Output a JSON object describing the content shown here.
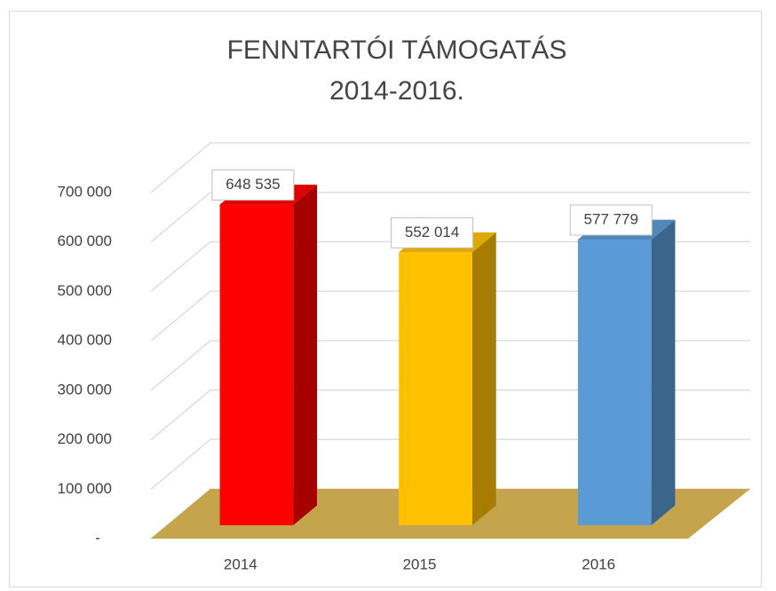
{
  "chart_data": {
    "type": "bar3d",
    "title": "FENNTARTÓI TÁMOGATÁS",
    "subtitle": "2014-2016.",
    "categories": [
      "2014",
      "2015",
      "2016"
    ],
    "values": [
      648535,
      552014,
      577779
    ],
    "value_labels": [
      "648 535",
      "552 014",
      "577 779"
    ],
    "colors": [
      "#ff0000",
      "#ffc000",
      "#5b9bd5"
    ],
    "floor_color": "#c4a54c",
    "ylim": [
      0,
      700000
    ],
    "yticks": [
      {
        "value": 0,
        "label": "-"
      },
      {
        "value": 100000,
        "label": "100 000"
      },
      {
        "value": 200000,
        "label": "200 000"
      },
      {
        "value": 300000,
        "label": "300 000"
      },
      {
        "value": 400000,
        "label": "400 000"
      },
      {
        "value": 500000,
        "label": "500 000"
      },
      {
        "value": 600000,
        "label": "600 000"
      },
      {
        "value": 700000,
        "label": "700 000"
      }
    ],
    "grid": true
  }
}
